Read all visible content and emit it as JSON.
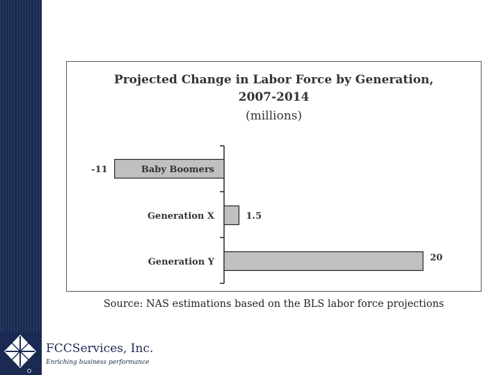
{
  "slide": {
    "company": "FCCServices, Inc.",
    "tagline": "Enriching business performance"
  },
  "chart_data": {
    "type": "bar",
    "orientation": "horizontal",
    "title": "Projected Change in Labor Force by Generation, 2007-2014",
    "title_line1": "Projected Change in Labor Force by Generation,",
    "title_line2": "2007-2014",
    "subtitle": "(millions)",
    "categories": [
      "Baby Boomers",
      "Generation X",
      "Generation Y"
    ],
    "values": [
      -11,
      1.5,
      20
    ],
    "value_labels": [
      "-11",
      "1.5",
      "20"
    ],
    "xlim": [
      -11,
      20
    ],
    "grid": false,
    "legend": "none",
    "bar_color": "#c0c0c0",
    "source": "Source: NAS estimations based on the BLS labor force projections"
  }
}
